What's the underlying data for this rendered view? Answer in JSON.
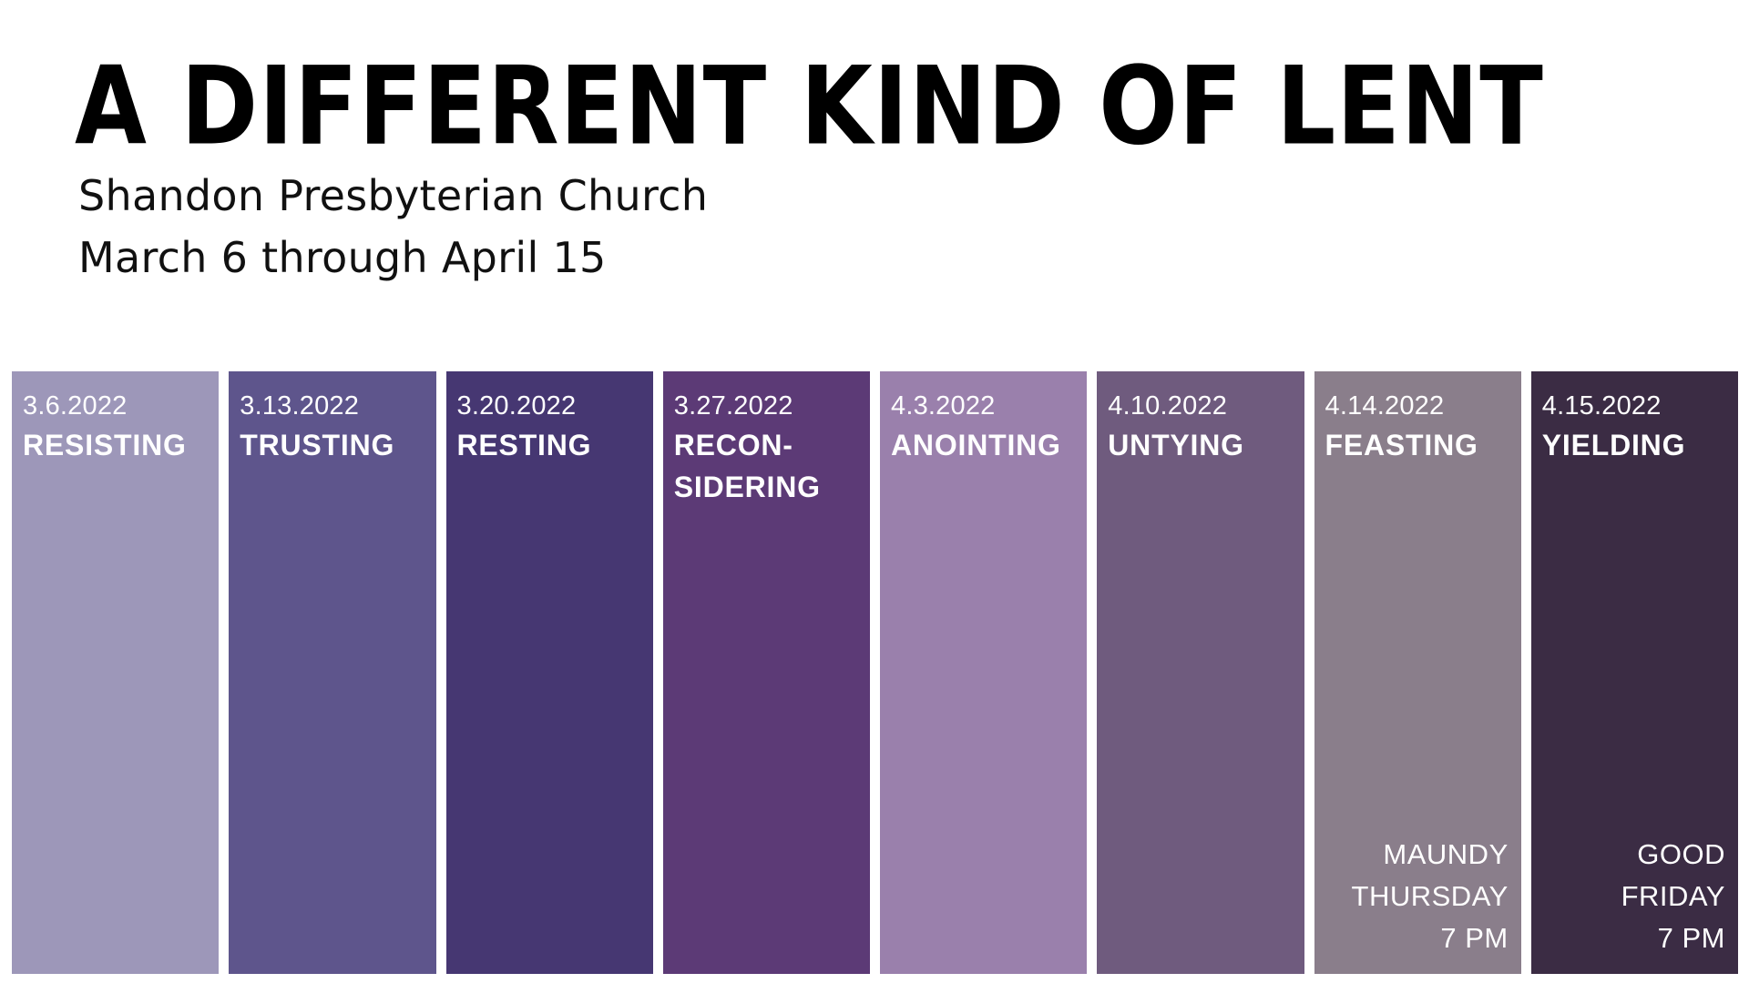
{
  "header": {
    "title": "A DIFFERENT KIND OF LENT",
    "subtitle_line1": "Shandon Presbyterian Church",
    "subtitle_line2": "March 6 through April 15"
  },
  "weeks": [
    {
      "date": "3.6.2022",
      "theme_line1": "RESISTING",
      "theme_line2": "",
      "color": "#9d97b9"
    },
    {
      "date": "3.13.2022",
      "theme_line1": "TRUSTING",
      "theme_line2": "",
      "color": "#5e558c"
    },
    {
      "date": "3.20.2022",
      "theme_line1": "RESTING",
      "theme_line2": "",
      "color": "#463772"
    },
    {
      "date": "3.27.2022",
      "theme_line1": "RECON-",
      "theme_line2": "SIDERING",
      "color": "#5c3a76"
    },
    {
      "date": "4.3.2022",
      "theme_line1": "ANOINTING",
      "theme_line2": "",
      "color": "#9a80ac"
    },
    {
      "date": "4.10.2022",
      "theme_line1": "UNTYING",
      "theme_line2": "",
      "color": "#6f5b7e"
    },
    {
      "date": "4.14.2022",
      "theme_line1": "FEASTING",
      "theme_line2": "",
      "color": "#8a7e8b",
      "note_line1": "MAUNDY",
      "note_line2": "THURSDAY",
      "note_line3": "7 PM"
    },
    {
      "date": "4.15.2022",
      "theme_line1": "YIELDING",
      "theme_line2": "",
      "color": "#3b2c44",
      "note_line1": "GOOD",
      "note_line2": "FRIDAY",
      "note_line3": "7 PM"
    }
  ]
}
